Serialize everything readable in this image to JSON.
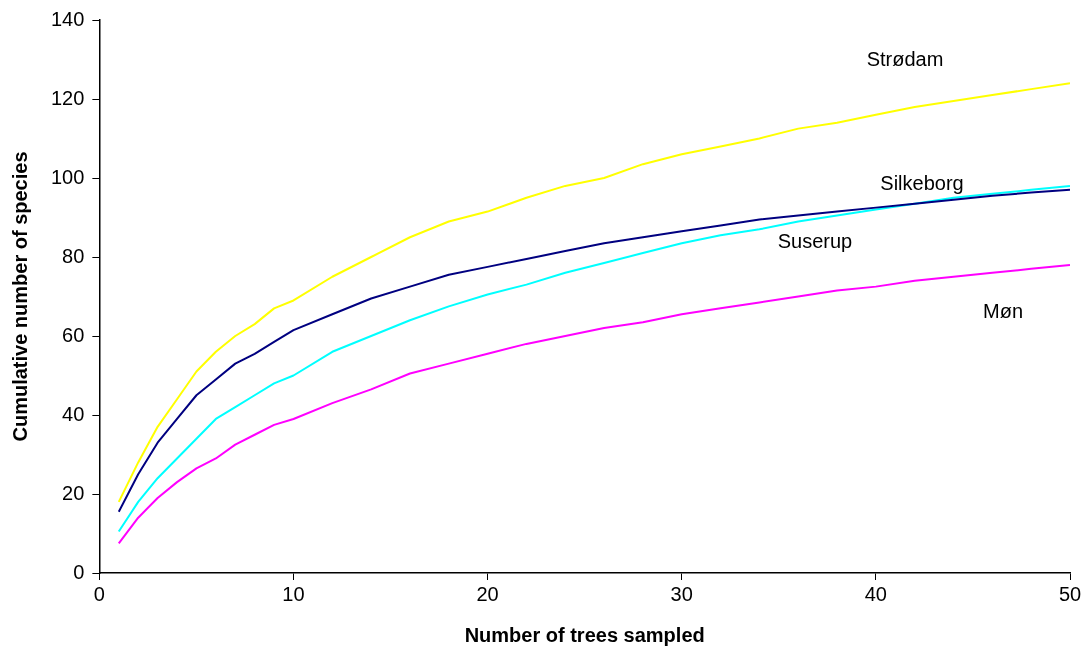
{
  "chart_data": {
    "type": "line",
    "xlabel": "Number of trees sampled",
    "ylabel": "Cumulative number of species",
    "x": [
      1,
      2,
      3,
      4,
      5,
      6,
      7,
      8,
      9,
      10,
      12,
      14,
      16,
      18,
      20,
      22,
      24,
      26,
      28,
      30,
      32,
      34,
      36,
      38,
      40,
      42,
      44,
      46,
      48,
      50
    ],
    "series": [
      {
        "name": "Strødam",
        "color": "#ffff00",
        "values": [
          18,
          28,
          37,
          44,
          51,
          56,
          60,
          63,
          67,
          69,
          75,
          80,
          85,
          89,
          91.5,
          95,
          98,
          100,
          103.5,
          106,
          108,
          110,
          112.5,
          114,
          116,
          118,
          119.5,
          121,
          122.5,
          124
        ]
      },
      {
        "name": "Silkeborg",
        "color": "#000080",
        "values": [
          15.5,
          25,
          33,
          39,
          45,
          49,
          53,
          55.5,
          58.5,
          61.5,
          65.5,
          69.5,
          72.5,
          75.5,
          77.5,
          79.5,
          81.5,
          83.5,
          85,
          86.5,
          88,
          89.5,
          90.5,
          91.5,
          92.5,
          93.5,
          94.5,
          95.5,
          96.3,
          97
        ]
      },
      {
        "name": "Suserup",
        "color": "#00ffff",
        "values": [
          10.5,
          18,
          24,
          29,
          34,
          39,
          42,
          45,
          48,
          50,
          56,
          60,
          64,
          67.5,
          70.5,
          73,
          76,
          78.5,
          81,
          83.5,
          85.5,
          87,
          89,
          90.5,
          92,
          93.5,
          95,
          96,
          97,
          98
        ]
      },
      {
        "name": "Møn",
        "color": "#ff00ff",
        "values": [
          7.5,
          14,
          19,
          23,
          26.5,
          29,
          32.5,
          35,
          37.5,
          39,
          43,
          46.5,
          50.5,
          53,
          55.5,
          58,
          60,
          62,
          63.5,
          65.5,
          67,
          68.5,
          70,
          71.5,
          72.5,
          74,
          75,
          76,
          77,
          78
        ]
      }
    ],
    "xlim": [
      0,
      50
    ],
    "xticks": [
      0,
      10,
      20,
      30,
      40,
      50
    ],
    "ylim": [
      0,
      140
    ],
    "yticks": [
      0,
      20,
      40,
      60,
      80,
      100,
      120,
      140
    ],
    "grid": false,
    "legend": false,
    "marker": "none",
    "line_style": "solid"
  }
}
